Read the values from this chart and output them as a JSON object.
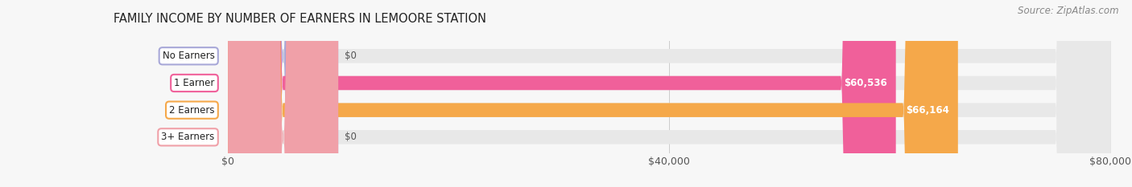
{
  "title": "FAMILY INCOME BY NUMBER OF EARNERS IN LEMOORE STATION",
  "source": "Source: ZipAtlas.com",
  "categories": [
    "No Earners",
    "1 Earner",
    "2 Earners",
    "3+ Earners"
  ],
  "values": [
    0,
    60536,
    66164,
    0
  ],
  "bar_colors": [
    "#a8a8d8",
    "#f0609a",
    "#f5a84a",
    "#f0a0a8"
  ],
  "xlim_max": 80000,
  "xticks": [
    0,
    40000,
    80000
  ],
  "xtick_labels": [
    "$0",
    "$40,000",
    "$80,000"
  ],
  "value_labels": [
    "$0",
    "$60,536",
    "$66,164",
    "$0"
  ],
  "bg_color": "#f7f7f7",
  "bar_bg_color": "#e8e8e8",
  "title_fontsize": 10.5,
  "source_fontsize": 8.5,
  "label_fontsize": 8.5,
  "value_fontsize": 8.5
}
